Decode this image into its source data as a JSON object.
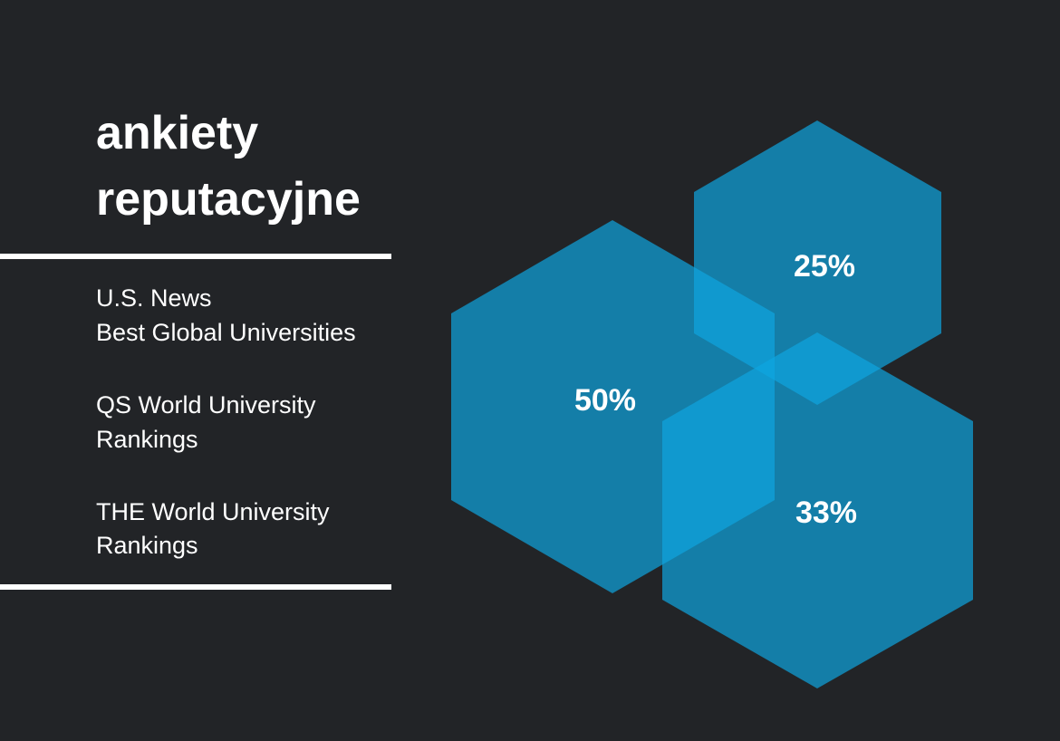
{
  "title": [
    "ankiety",
    "reputacyjne"
  ],
  "rankings": [
    [
      "U.S. News",
      "Best Global Universities"
    ],
    [
      "QS World University",
      "Rankings"
    ],
    [
      "THE World University",
      "Rankings"
    ]
  ],
  "hexagons": [
    {
      "label": "50%"
    },
    {
      "label": "25%"
    },
    {
      "label": "33%"
    }
  ]
}
